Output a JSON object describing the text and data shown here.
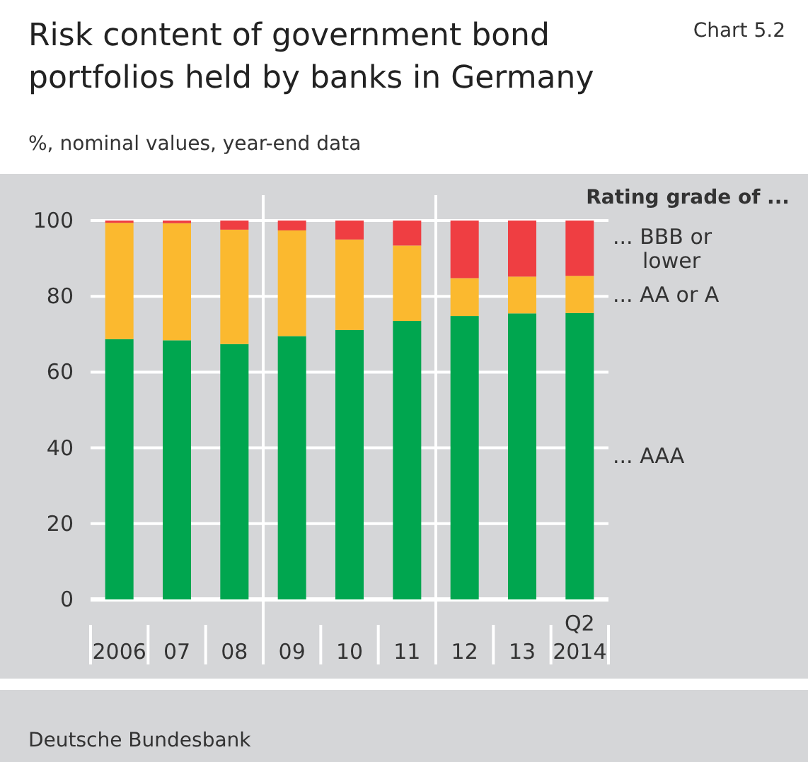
{
  "chart_data": {
    "type": "bar",
    "title": "Risk content of government bond portfolios held by banks in Germany",
    "subtitle": "%, nominal values, year-end data",
    "legend_title": "Rating grade of ...",
    "annotations": [
      "Chart 5.2",
      "Deutsche Bundesbank"
    ],
    "categories": [
      "2006",
      "07",
      "08",
      "09",
      "10",
      "11",
      "12",
      "13",
      "Q2 2014"
    ],
    "stacked": true,
    "ylim": [
      0,
      100
    ],
    "yticks": [
      0,
      20,
      40,
      60,
      80,
      100
    ],
    "grid": "y",
    "legend": "right",
    "series": [
      {
        "name": "... AAA",
        "color": "#00a64f",
        "values": [
          68.7,
          68.4,
          67.4,
          69.5,
          71.1,
          73.5,
          74.8,
          75.5,
          75.6
        ]
      },
      {
        "name": "... AA or A",
        "color": "#fbb92f",
        "values": [
          30.7,
          30.9,
          30.2,
          27.9,
          23.9,
          19.9,
          10,
          9.7,
          9.8
        ]
      },
      {
        "name": "... BBB or lower",
        "color": "#ef3e42",
        "values": [
          0.6,
          0.7,
          2.4,
          2.6,
          5,
          6.6,
          15.2,
          14.8,
          14.6
        ]
      }
    ]
  }
}
